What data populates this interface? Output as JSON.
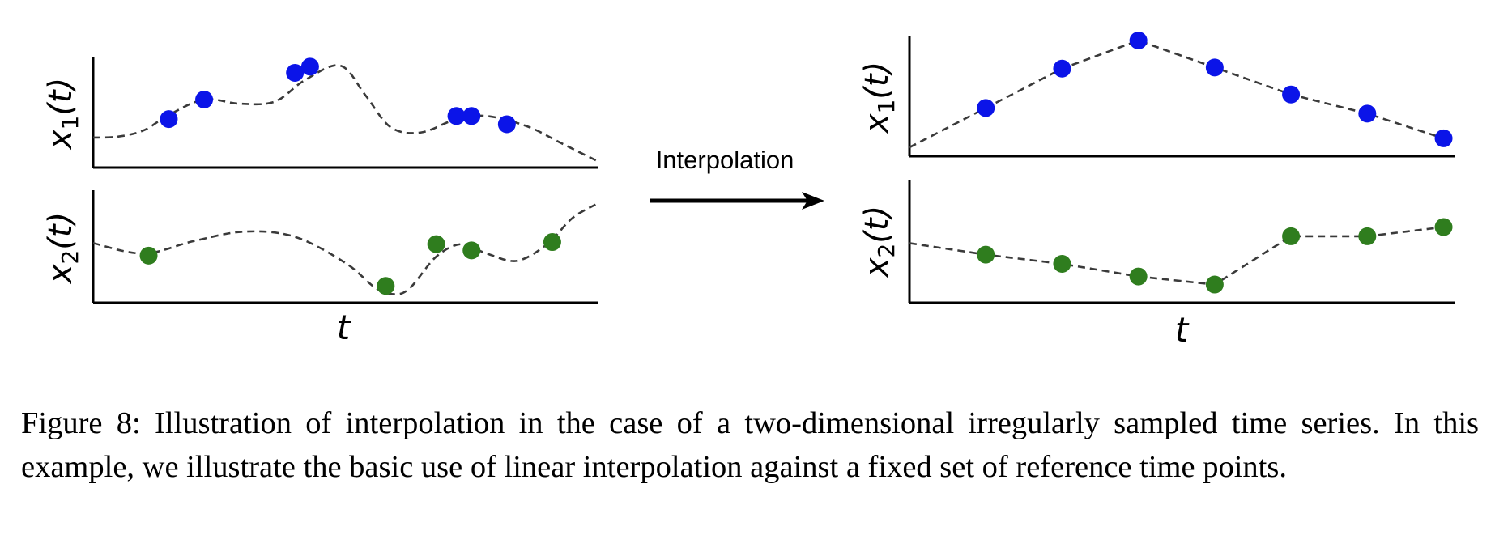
{
  "figure": {
    "arrow_label": "Interpolation",
    "colors": {
      "x1": "#0b14e8",
      "x2": "#2f7d1e",
      "axis": "#000000",
      "curve": "#3a3a3a"
    }
  },
  "chart_data": [
    {
      "type": "line",
      "panel": "left-top",
      "ylabel": {
        "var": "x",
        "sub": "1",
        "arg": "(t)"
      },
      "xlabel": "",
      "xlim": [
        0,
        10
      ],
      "ylim": [
        0,
        10
      ],
      "series": [
        {
          "role": "curve",
          "style": "dashed",
          "x": [
            0,
            0.5,
            1.0,
            1.5,
            2.2,
            2.9,
            3.6,
            4.2,
            4.9,
            5.4,
            5.9,
            6.5,
            7.2,
            7.8,
            8.6,
            9.3,
            10
          ],
          "y": [
            2.6,
            2.7,
            3.3,
            4.8,
            6.3,
            5.9,
            6.1,
            8.2,
            9.6,
            6.7,
            3.6,
            3.1,
            4.4,
            4.7,
            3.7,
            2.0,
            0.3
          ]
        },
        {
          "role": "samples",
          "style": "points",
          "x": [
            1.5,
            2.2,
            4.0,
            4.3,
            7.2,
            7.5,
            8.2
          ],
          "y": [
            4.4,
            6.3,
            8.9,
            9.5,
            4.7,
            4.7,
            3.9
          ]
        }
      ]
    },
    {
      "type": "line",
      "panel": "left-bottom",
      "ylabel": {
        "var": "x",
        "sub": "2",
        "arg": "(t)"
      },
      "xlabel": "t",
      "xlim": [
        0,
        10
      ],
      "ylim": [
        0,
        10
      ],
      "series": [
        {
          "role": "curve",
          "style": "dashed",
          "x": [
            0,
            1.0,
            2.0,
            3.0,
            4.0,
            5.0,
            5.6,
            6.0,
            6.3,
            6.8,
            7.3,
            7.8,
            8.4,
            9.0,
            9.5,
            10
          ],
          "y": [
            5.4,
            4.4,
            5.6,
            6.5,
            6.0,
            3.5,
            1.1,
            0.5,
            1.2,
            4.1,
            5.3,
            4.4,
            3.7,
            5.3,
            7.8,
            9.2
          ]
        },
        {
          "role": "samples",
          "style": "points",
          "x": [
            1.1,
            5.8,
            6.8,
            7.5,
            9.1
          ],
          "y": [
            4.2,
            1.3,
            5.3,
            4.7,
            5.5
          ]
        }
      ]
    },
    {
      "type": "line",
      "panel": "right-top",
      "ylabel": {
        "var": "x",
        "sub": "1",
        "arg": "(t)"
      },
      "xlabel": "",
      "xlim": [
        0,
        10
      ],
      "ylim": [
        0,
        10
      ],
      "series": [
        {
          "role": "interpolated",
          "style": "dashed",
          "x": [
            0,
            1.4,
            2.8,
            4.2,
            5.6,
            7.0,
            8.4,
            9.8
          ],
          "y": [
            0.5,
            4.0,
            7.5,
            10,
            7.6,
            5.2,
            3.5,
            1.3
          ]
        },
        {
          "role": "reference-points",
          "style": "points",
          "x": [
            1.4,
            2.8,
            4.2,
            5.6,
            7.0,
            8.4,
            9.8
          ],
          "y": [
            4.0,
            7.5,
            10,
            7.6,
            5.2,
            3.5,
            1.3
          ]
        }
      ]
    },
    {
      "type": "line",
      "panel": "right-bottom",
      "ylabel": {
        "var": "x",
        "sub": "2",
        "arg": "(t)"
      },
      "xlabel": "t",
      "xlim": [
        0,
        10
      ],
      "ylim": [
        0,
        10
      ],
      "series": [
        {
          "role": "interpolated",
          "style": "dashed",
          "x": [
            0,
            1.4,
            2.8,
            4.2,
            5.6,
            7.0,
            8.4,
            9.8
          ],
          "y": [
            4.9,
            3.9,
            3.1,
            2.0,
            1.3,
            5.5,
            5.5,
            6.3
          ]
        },
        {
          "role": "reference-points",
          "style": "points",
          "x": [
            1.4,
            2.8,
            4.2,
            5.6,
            7.0,
            8.4,
            9.8
          ],
          "y": [
            3.9,
            3.1,
            2.0,
            1.3,
            5.5,
            5.5,
            6.3
          ]
        }
      ]
    }
  ],
  "caption": {
    "label": "Figure 8:",
    "text": "Illustration of interpolation in the case of a two-dimensional irregularly sampled time series. In this example, we illustrate the basic use of linear interpolation against a fixed set of reference time points."
  }
}
